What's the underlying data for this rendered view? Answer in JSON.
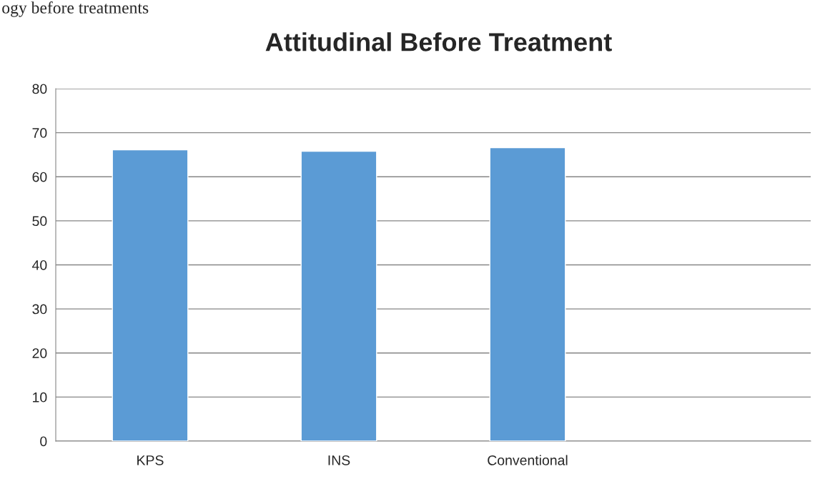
{
  "chart_data": {
    "type": "bar",
    "title": "Attitudinal Before Treatment",
    "categories": [
      "KPS",
      "INS",
      "Conventional",
      null
    ],
    "values": [
      66.1,
      65.8,
      66.6,
      null
    ],
    "color": "#5b9bd5",
    "ylim": [
      0,
      80
    ],
    "yticks": [
      0,
      10,
      20,
      30,
      40,
      50,
      60,
      70,
      80
    ],
    "grid": "y",
    "legend": false,
    "annotations": [
      "ogy before treatments"
    ]
  }
}
